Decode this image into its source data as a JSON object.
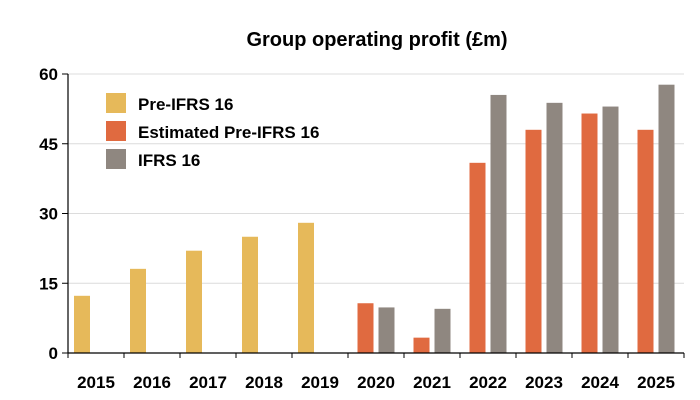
{
  "chart_data": {
    "type": "bar",
    "title": "Group operating profit (£m)",
    "xlabel": "",
    "ylabel": "",
    "ylim": [
      0,
      60
    ],
    "yticks": [
      0,
      15,
      30,
      45,
      60
    ],
    "grid": true,
    "legend_position": "top-left",
    "categories": [
      "2015",
      "2016",
      "2017",
      "2018",
      "2019",
      "2020",
      "2021",
      "2022",
      "2023",
      "2024",
      "2025"
    ],
    "series": [
      {
        "name": "Pre-IFRS 16",
        "color": "#e6b95a",
        "values": [
          12.3,
          18.1,
          22.0,
          25.0,
          28.0,
          null,
          null,
          null,
          null,
          null,
          null
        ]
      },
      {
        "name": "Estimated Pre-IFRS 16",
        "color": "#e06a40",
        "values": [
          null,
          null,
          null,
          null,
          null,
          10.7,
          3.3,
          40.9,
          48.0,
          51.5,
          48.0
        ]
      },
      {
        "name": "IFRS 16",
        "color": "#8f8780",
        "values": [
          null,
          null,
          null,
          null,
          null,
          9.8,
          9.5,
          55.5,
          53.8,
          53.0,
          57.7
        ]
      }
    ]
  }
}
